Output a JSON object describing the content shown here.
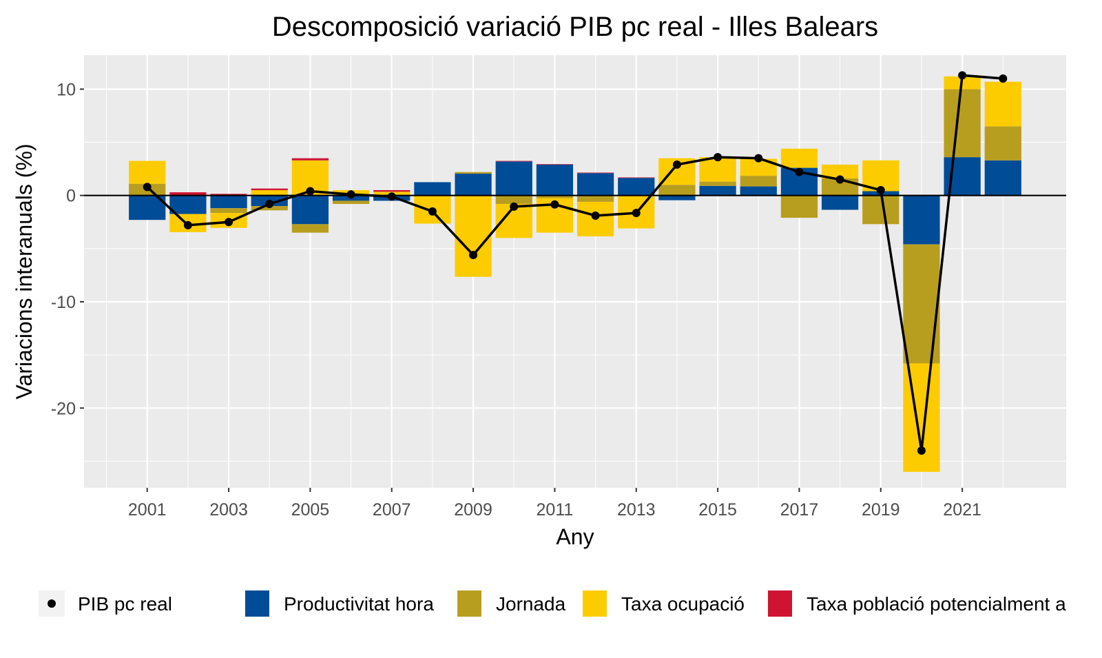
{
  "chart_data": {
    "type": "bar",
    "subtype": "stacked-bar-with-line",
    "title": "Descomposició variació PIB pc real - Illes Balears",
    "xlabel": "Any",
    "ylabel": "Variacions interanuals (%)",
    "ylim": [
      -27.5,
      13.2
    ],
    "xlim": [
      1999.45,
      2023.55
    ],
    "yticks": [
      10,
      0,
      -10,
      -20
    ],
    "xticks": [
      2001,
      2003,
      2005,
      2007,
      2009,
      2011,
      2013,
      2015,
      2017,
      2019,
      2021
    ],
    "grid": true,
    "legend_position": "bottom",
    "x": [
      2001,
      2002,
      2003,
      2004,
      2005,
      2006,
      2007,
      2008,
      2009,
      2010,
      2011,
      2012,
      2013,
      2014,
      2015,
      2016,
      2017,
      2018,
      2019,
      2020,
      2021,
      2022
    ],
    "series": [
      {
        "name": "Productivitat hora",
        "color": "#004C97",
        "values": [
          -2.3,
          -1.75,
          -1.2,
          -1.0,
          -2.7,
          -0.5,
          -0.5,
          1.25,
          2.05,
          3.2,
          2.9,
          2.1,
          1.65,
          -0.45,
          0.9,
          0.85,
          2.6,
          -1.35,
          0.4,
          -4.6,
          3.6,
          3.3
        ]
      },
      {
        "name": "Jornada",
        "color": "#B89E1F",
        "values": [
          1.1,
          0,
          -0.45,
          -0.4,
          -0.8,
          -0.3,
          0,
          0,
          0.15,
          -0.8,
          -0.25,
          -0.6,
          0,
          1.0,
          0.4,
          1.0,
          -2.1,
          1.6,
          -2.7,
          -11.2,
          6.4,
          3.2
        ]
      },
      {
        "name": "Taxa ocupació",
        "color": "#FDCC00",
        "values": [
          2.15,
          -1.7,
          -1.4,
          0.5,
          3.3,
          0.5,
          0.35,
          -2.65,
          -7.65,
          -3.2,
          -3.25,
          -3.25,
          -3.1,
          2.5,
          2.3,
          1.6,
          1.8,
          1.3,
          2.9,
          -10.2,
          1.2,
          4.2
        ]
      },
      {
        "name": "Taxa població potencialment a",
        "color": "#CE1432",
        "values": [
          0,
          0.3,
          0.15,
          0.15,
          0.2,
          0,
          0.15,
          0,
          0,
          0.05,
          0.05,
          0.05,
          0.05,
          0,
          0,
          0,
          0,
          0,
          0,
          0,
          0,
          0
        ]
      }
    ],
    "line": {
      "name": "PIB pc real",
      "color": "#000000",
      "values": [
        0.8,
        -2.8,
        -2.5,
        -0.8,
        0.4,
        0.1,
        -0.1,
        -1.5,
        -5.6,
        -1.05,
        -0.85,
        -1.9,
        -1.65,
        2.9,
        3.6,
        3.5,
        2.2,
        1.5,
        0.5,
        -24.0,
        11.3,
        11.0
      ]
    }
  }
}
